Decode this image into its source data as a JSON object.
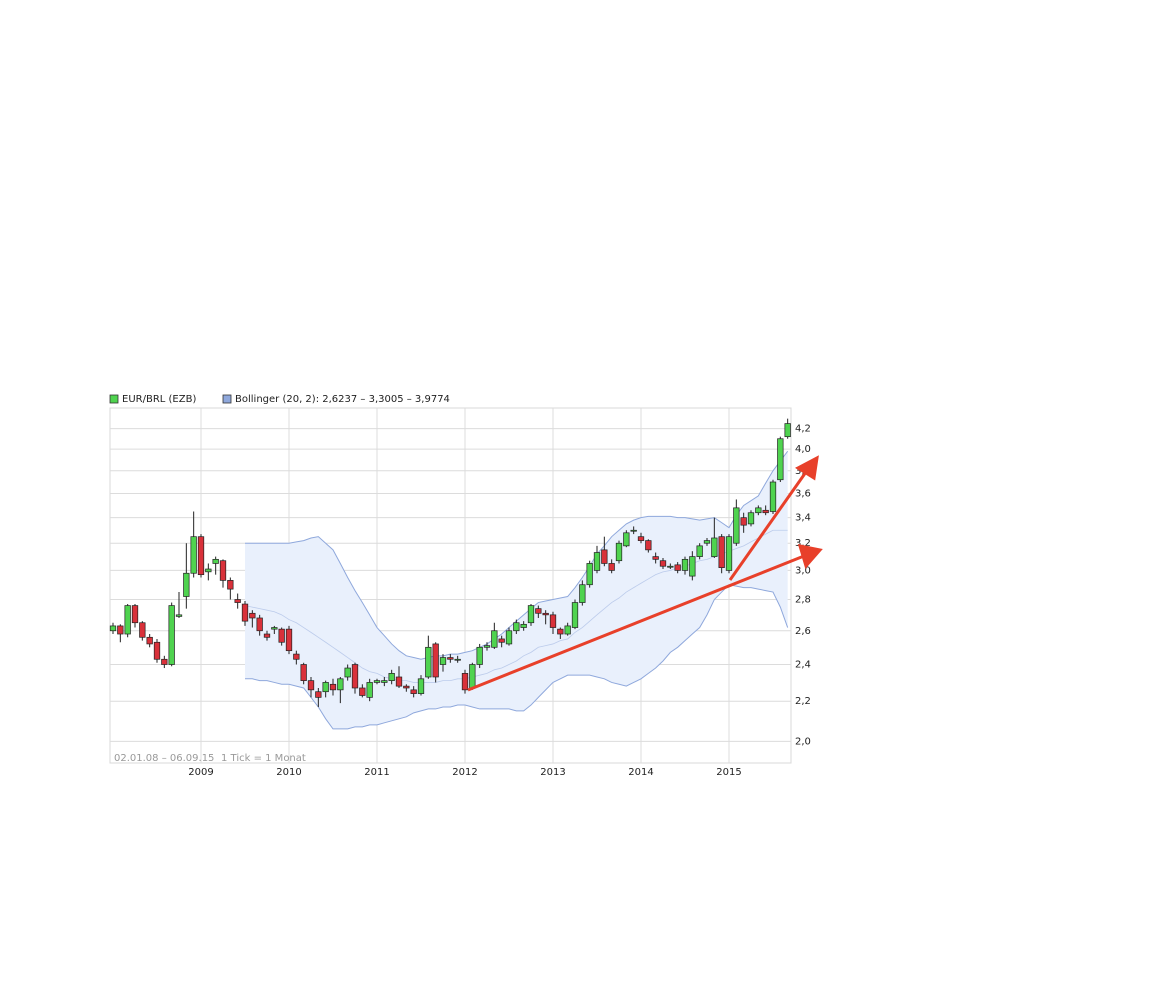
{
  "chart_data": {
    "type": "candlestick",
    "log_y": true,
    "grid": true,
    "date_range": "02.01.08 – 06.09.15",
    "tick_note": "1 Tick = 1 Monat",
    "categories": [
      null,
      null,
      null,
      null,
      null,
      null,
      null,
      null,
      null,
      null,
      null,
      null,
      "2009",
      null,
      null,
      null,
      null,
      null,
      null,
      null,
      null,
      null,
      null,
      null,
      "2010",
      null,
      null,
      null,
      null,
      null,
      null,
      null,
      null,
      null,
      null,
      null,
      "2011",
      null,
      null,
      null,
      null,
      null,
      null,
      null,
      null,
      null,
      null,
      null,
      "2012",
      null,
      null,
      null,
      null,
      null,
      null,
      null,
      null,
      null,
      null,
      null,
      "2013",
      null,
      null,
      null,
      null,
      null,
      null,
      null,
      null,
      null,
      null,
      null,
      "2014",
      null,
      null,
      null,
      null,
      null,
      null,
      null,
      null,
      null,
      null,
      null,
      "2015",
      null,
      null,
      null,
      null,
      null,
      null,
      null,
      null
    ],
    "ylim": [
      1.9,
      4.41
    ],
    "yticks": [
      {
        "value": 2.0,
        "label": "2,0"
      },
      {
        "value": 2.2,
        "label": "2,2"
      },
      {
        "value": 2.4,
        "label": "2,4"
      },
      {
        "value": 2.6,
        "label": "2,6"
      },
      {
        "value": 2.8,
        "label": "2,8"
      },
      {
        "value": 3.0,
        "label": "3,0"
      },
      {
        "value": 3.2,
        "label": "3,2"
      },
      {
        "value": 3.4,
        "label": "3,4"
      },
      {
        "value": 3.6,
        "label": "3,6"
      },
      {
        "value": 3.8,
        "label": "3,8"
      },
      {
        "value": 4.0,
        "label": "4,0"
      },
      {
        "value": 4.2,
        "label": "4,2"
      }
    ],
    "series": [
      {
        "name": "EUR/BRL (EZB)",
        "color": "#4fd34f",
        "down_color": "#d9313a",
        "open": [
          2.6,
          2.63,
          2.58,
          2.76,
          2.65,
          2.56,
          2.53,
          2.43,
          2.4,
          2.69,
          2.82,
          2.98,
          3.25,
          2.99,
          3.05,
          3.07,
          2.93,
          2.8,
          2.77,
          2.71,
          2.68,
          2.58,
          2.61,
          2.61,
          2.61,
          2.46,
          2.4,
          2.31,
          2.25,
          2.25,
          2.29,
          2.26,
          2.33,
          2.4,
          2.27,
          2.22,
          2.3,
          2.3,
          2.31,
          2.33,
          2.28,
          2.26,
          2.24,
          2.33,
          2.52,
          2.4,
          2.44,
          2.43,
          2.35,
          2.27,
          2.4,
          2.5,
          2.5,
          2.55,
          2.52,
          2.6,
          2.62,
          2.65,
          2.74,
          2.71,
          2.7,
          2.61,
          2.58,
          2.62,
          2.78,
          2.9,
          3.0,
          3.15,
          3.05,
          3.07,
          3.18,
          3.3,
          3.25,
          3.22,
          3.1,
          3.07,
          3.03,
          3.04,
          3.0,
          2.96,
          3.1,
          3.2,
          3.1,
          3.25,
          3.0,
          3.2,
          3.4,
          3.35,
          3.44,
          3.46,
          3.45,
          3.72,
          4.12
        ],
        "high": [
          2.65,
          2.64,
          2.77,
          2.77,
          2.66,
          2.58,
          2.55,
          2.45,
          2.78,
          2.85,
          3.2,
          3.45,
          3.27,
          3.05,
          3.1,
          3.08,
          2.95,
          2.84,
          2.79,
          2.73,
          2.7,
          2.6,
          2.63,
          2.62,
          2.63,
          2.48,
          2.41,
          2.33,
          2.27,
          2.31,
          2.32,
          2.33,
          2.4,
          2.41,
          2.29,
          2.32,
          2.32,
          2.33,
          2.37,
          2.39,
          2.29,
          2.28,
          2.34,
          2.57,
          2.53,
          2.46,
          2.46,
          2.45,
          2.37,
          2.41,
          2.52,
          2.53,
          2.65,
          2.57,
          2.62,
          2.67,
          2.66,
          2.77,
          2.76,
          2.73,
          2.72,
          2.62,
          2.65,
          2.8,
          2.93,
          3.07,
          3.18,
          3.25,
          3.08,
          3.22,
          3.3,
          3.33,
          3.28,
          3.23,
          3.13,
          3.09,
          3.05,
          3.06,
          3.1,
          3.14,
          3.2,
          3.24,
          3.4,
          3.27,
          3.27,
          3.55,
          3.44,
          3.46,
          3.5,
          3.5,
          3.72,
          4.12,
          4.3
        ],
        "low": [
          2.58,
          2.53,
          2.56,
          2.62,
          2.54,
          2.5,
          2.41,
          2.38,
          2.39,
          2.68,
          2.74,
          2.95,
          2.95,
          2.93,
          2.97,
          2.88,
          2.8,
          2.74,
          2.63,
          2.62,
          2.57,
          2.54,
          2.58,
          2.51,
          2.46,
          2.4,
          2.29,
          2.22,
          2.17,
          2.22,
          2.23,
          2.19,
          2.31,
          2.24,
          2.22,
          2.2,
          2.29,
          2.28,
          2.29,
          2.27,
          2.25,
          2.22,
          2.23,
          2.32,
          2.3,
          2.36,
          2.41,
          2.41,
          2.24,
          2.26,
          2.38,
          2.48,
          2.49,
          2.5,
          2.51,
          2.58,
          2.6,
          2.63,
          2.68,
          2.64,
          2.58,
          2.55,
          2.57,
          2.61,
          2.76,
          2.88,
          2.98,
          3.03,
          2.98,
          3.05,
          3.17,
          3.27,
          3.2,
          3.13,
          3.05,
          3.01,
          3.01,
          2.98,
          2.97,
          2.93,
          3.08,
          3.18,
          3.09,
          2.98,
          2.98,
          3.18,
          3.28,
          3.33,
          3.42,
          3.42,
          3.43,
          3.7,
          4.1
        ],
        "close": [
          2.63,
          2.58,
          2.76,
          2.65,
          2.56,
          2.52,
          2.43,
          2.4,
          2.76,
          2.7,
          2.98,
          3.25,
          2.97,
          3.01,
          3.08,
          2.93,
          2.87,
          2.78,
          2.66,
          2.68,
          2.6,
          2.56,
          2.62,
          2.53,
          2.48,
          2.43,
          2.31,
          2.26,
          2.22,
          2.3,
          2.26,
          2.32,
          2.38,
          2.27,
          2.23,
          2.3,
          2.31,
          2.31,
          2.35,
          2.28,
          2.27,
          2.24,
          2.32,
          2.5,
          2.33,
          2.44,
          2.43,
          2.43,
          2.26,
          2.4,
          2.5,
          2.51,
          2.6,
          2.53,
          2.6,
          2.65,
          2.64,
          2.76,
          2.71,
          2.7,
          2.62,
          2.58,
          2.63,
          2.78,
          2.9,
          3.05,
          3.13,
          3.05,
          3.0,
          3.2,
          3.28,
          3.3,
          3.22,
          3.15,
          3.08,
          3.03,
          3.03,
          3.0,
          3.08,
          3.1,
          3.18,
          3.22,
          3.24,
          3.02,
          3.25,
          3.48,
          3.34,
          3.44,
          3.48,
          3.44,
          3.7,
          4.1,
          4.25
        ]
      },
      {
        "name": "Bollinger (20, 2): 2,6237 – 3,3005 – 3,9774",
        "color": "#8fa8dc",
        "fill": "#e9f0fc",
        "upper": [
          null,
          null,
          null,
          null,
          null,
          null,
          null,
          null,
          null,
          null,
          null,
          null,
          null,
          null,
          null,
          null,
          null,
          null,
          3.2,
          3.2,
          3.2,
          3.2,
          3.2,
          3.2,
          3.2,
          3.21,
          3.22,
          3.24,
          3.25,
          3.2,
          3.15,
          3.05,
          2.95,
          2.86,
          2.78,
          2.7,
          2.62,
          2.57,
          2.52,
          2.48,
          2.45,
          2.44,
          2.43,
          2.44,
          2.45,
          2.45,
          2.46,
          2.46,
          2.47,
          2.48,
          2.5,
          2.52,
          2.55,
          2.58,
          2.62,
          2.66,
          2.7,
          2.74,
          2.78,
          2.79,
          2.8,
          2.81,
          2.82,
          2.88,
          2.95,
          3.03,
          3.12,
          3.18,
          3.25,
          3.3,
          3.35,
          3.38,
          3.4,
          3.41,
          3.41,
          3.41,
          3.41,
          3.4,
          3.4,
          3.39,
          3.38,
          3.39,
          3.4,
          3.36,
          3.32,
          3.42,
          3.5,
          3.54,
          3.58,
          3.69,
          3.8,
          3.89,
          3.98
        ],
        "middle": [
          null,
          null,
          null,
          null,
          null,
          null,
          null,
          null,
          null,
          null,
          null,
          null,
          null,
          null,
          null,
          null,
          null,
          null,
          2.76,
          2.75,
          2.74,
          2.73,
          2.72,
          2.7,
          2.67,
          2.65,
          2.62,
          2.59,
          2.56,
          2.53,
          2.5,
          2.47,
          2.44,
          2.41,
          2.38,
          2.36,
          2.35,
          2.33,
          2.32,
          2.31,
          2.31,
          2.3,
          2.3,
          2.3,
          2.3,
          2.31,
          2.31,
          2.32,
          2.32,
          2.33,
          2.34,
          2.35,
          2.37,
          2.38,
          2.4,
          2.42,
          2.45,
          2.47,
          2.5,
          2.51,
          2.52,
          2.54,
          2.55,
          2.59,
          2.62,
          2.66,
          2.7,
          2.74,
          2.78,
          2.81,
          2.85,
          2.88,
          2.91,
          2.94,
          2.97,
          2.99,
          3.0,
          3.02,
          3.03,
          3.05,
          3.07,
          3.08,
          3.1,
          3.12,
          3.14,
          3.16,
          3.18,
          3.21,
          3.24,
          3.27,
          3.3,
          3.3,
          3.3
        ],
        "lower": [
          null,
          null,
          null,
          null,
          null,
          null,
          null,
          null,
          null,
          null,
          null,
          null,
          null,
          null,
          null,
          null,
          null,
          null,
          2.32,
          2.32,
          2.31,
          2.31,
          2.3,
          2.29,
          2.29,
          2.28,
          2.27,
          2.22,
          2.17,
          2.11,
          2.06,
          2.06,
          2.06,
          2.07,
          2.07,
          2.08,
          2.08,
          2.09,
          2.1,
          2.11,
          2.12,
          2.14,
          2.15,
          2.16,
          2.16,
          2.17,
          2.17,
          2.18,
          2.18,
          2.17,
          2.16,
          2.16,
          2.16,
          2.16,
          2.16,
          2.15,
          2.15,
          2.18,
          2.22,
          2.26,
          2.3,
          2.32,
          2.34,
          2.34,
          2.34,
          2.34,
          2.33,
          2.32,
          2.3,
          2.29,
          2.28,
          2.3,
          2.32,
          2.35,
          2.38,
          2.42,
          2.47,
          2.5,
          2.54,
          2.58,
          2.62,
          2.7,
          2.8,
          2.85,
          2.9,
          2.89,
          2.88,
          2.88,
          2.87,
          2.86,
          2.85,
          2.75,
          2.62
        ]
      }
    ]
  }
}
